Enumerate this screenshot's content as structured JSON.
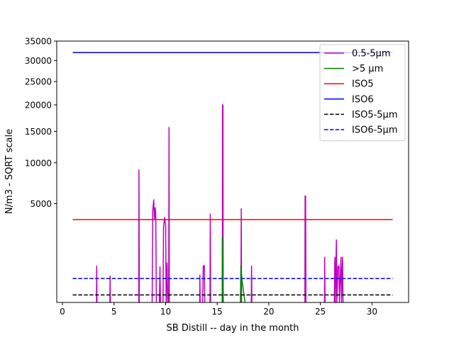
{
  "chart_data": {
    "type": "line",
    "xlabel": "SB Distill -- day in the month",
    "ylabel": "N/m3 - SQRT scale",
    "xlim": [
      -0.55,
      33.55
    ],
    "ylim": [
      0,
      35000
    ],
    "y_scale": "sqrt",
    "x_ticks": [
      0,
      5,
      10,
      15,
      20,
      25,
      30
    ],
    "y_ticks": [
      5000,
      10000,
      15000,
      20000,
      25000,
      30000,
      35000
    ],
    "grid": false,
    "legend_position": "upper-right",
    "series": [
      {
        "name": "0.5-5µm",
        "color": "#bf00bf",
        "style": "solid",
        "segments": [
          [
            [
              3.3,
              0
            ],
            [
              3.32,
              680
            ],
            [
              3.35,
              0
            ]
          ],
          [
            [
              4.6,
              0
            ],
            [
              4.62,
              360
            ],
            [
              4.65,
              0
            ]
          ],
          [
            [
              7.4,
              0
            ],
            [
              7.42,
              9000
            ],
            [
              7.45,
              0
            ]
          ],
          [
            [
              8.7,
              0
            ],
            [
              8.75,
              4300
            ],
            [
              8.85,
              5400
            ],
            [
              8.92,
              3500
            ],
            [
              9.0,
              4600
            ],
            [
              9.05,
              3800
            ],
            [
              9.1,
              0
            ]
          ],
          [
            [
              9.4,
              0
            ],
            [
              9.45,
              650
            ],
            [
              9.5,
              0
            ]
          ],
          [
            [
              9.75,
              0
            ],
            [
              9.8,
              2800
            ],
            [
              9.9,
              3700
            ],
            [
              10.0,
              3100
            ],
            [
              10.05,
              0
            ],
            [
              10.15,
              800
            ],
            [
              10.2,
              0
            ]
          ],
          [
            [
              10.3,
              0
            ],
            [
              10.33,
              15700
            ],
            [
              10.36,
              0
            ]
          ],
          [
            [
              13.3,
              0
            ],
            [
              13.32,
              380
            ],
            [
              13.35,
              0
            ]
          ],
          [
            [
              13.6,
              0
            ],
            [
              13.65,
              690
            ],
            [
              13.75,
              690
            ],
            [
              13.8,
              0
            ]
          ],
          [
            [
              14.3,
              0
            ],
            [
              14.33,
              4000
            ],
            [
              14.36,
              0
            ]
          ],
          [
            [
              15.5,
              0
            ],
            [
              15.52,
              20000
            ],
            [
              15.56,
              20000
            ],
            [
              15.58,
              0
            ]
          ],
          [
            [
              17.3,
              0
            ],
            [
              17.33,
              4500
            ],
            [
              17.36,
              0
            ]
          ],
          [
            [
              18.3,
              0
            ],
            [
              18.33,
              680
            ],
            [
              18.36,
              0
            ]
          ],
          [
            [
              23.5,
              0
            ],
            [
              23.52,
              5800
            ],
            [
              23.57,
              5800
            ],
            [
              23.6,
              0
            ]
          ],
          [
            [
              25.4,
              0
            ],
            [
              25.42,
              1050
            ],
            [
              25.45,
              0
            ]
          ],
          [
            [
              26.35,
              0
            ],
            [
              26.4,
              1050
            ],
            [
              26.45,
              0
            ],
            [
              26.55,
              2000
            ],
            [
              26.6,
              0
            ],
            [
              26.7,
              680
            ],
            [
              26.8,
              680
            ],
            [
              26.85,
              0
            ],
            [
              27.0,
              1050
            ],
            [
              27.05,
              0
            ],
            [
              27.15,
              1050
            ],
            [
              27.2,
              0
            ]
          ]
        ]
      },
      {
        "name": ">5 µm",
        "color": "#008000",
        "style": "solid",
        "segments": [
          [
            [
              15.48,
              0
            ],
            [
              15.5,
              2200
            ],
            [
              15.55,
              1000
            ],
            [
              15.58,
              0
            ]
          ],
          [
            [
              17.25,
              0
            ],
            [
              17.3,
              700
            ],
            [
              17.4,
              250
            ],
            [
              17.7,
              0
            ]
          ]
        ]
      },
      {
        "name": "ISO5",
        "color": "#ff0000",
        "style": "solid",
        "segments": [
          [
            [
              1,
              3520
            ],
            [
              32,
              3520
            ]
          ]
        ]
      },
      {
        "name": "ISO6",
        "color": "#0000ff",
        "style": "solid",
        "segments": [
          [
            [
              1,
              32000
            ],
            [
              32,
              32000
            ]
          ]
        ]
      },
      {
        "name": "ISO5-5µm",
        "color": "#000000",
        "style": "dashed",
        "segments": [
          [
            [
              1,
              29
            ],
            [
              32,
              29
            ]
          ]
        ]
      },
      {
        "name": "ISO6-5µm",
        "color": "#0000ff",
        "style": "dashed",
        "segments": [
          [
            [
              1,
              293
            ],
            [
              32,
              293
            ]
          ]
        ]
      }
    ]
  }
}
